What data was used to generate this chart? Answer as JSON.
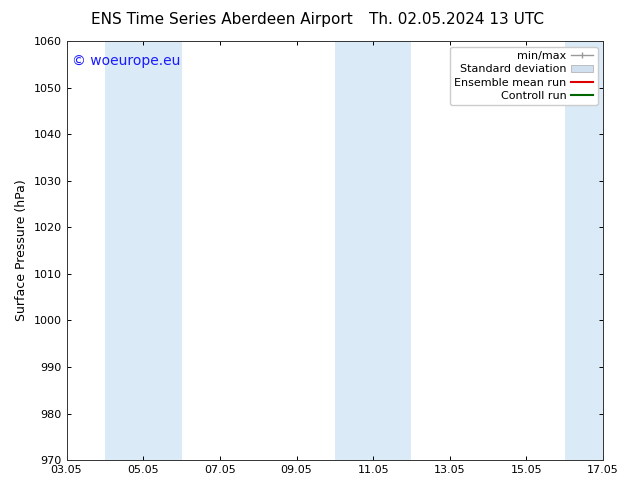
{
  "title_left": "ENS Time Series Aberdeen Airport",
  "title_right": "Th. 02.05.2024 13 UTC",
  "ylabel": "Surface Pressure (hPa)",
  "ylim": [
    970,
    1060
  ],
  "yticks": [
    970,
    980,
    990,
    1000,
    1010,
    1020,
    1030,
    1040,
    1050,
    1060
  ],
  "xtick_labels": [
    "03.05",
    "05.05",
    "07.05",
    "09.05",
    "11.05",
    "13.05",
    "15.05",
    "17.05"
  ],
  "watermark": "© woeurope.eu",
  "watermark_color": "#1a1aff",
  "bg_color": "#ffffff",
  "plot_bg_color": "#ffffff",
  "shaded_band_color": "#daeaf7",
  "title_fontsize": 11,
  "tick_fontsize": 8,
  "label_fontsize": 9,
  "watermark_fontsize": 10,
  "legend_fontsize": 8
}
